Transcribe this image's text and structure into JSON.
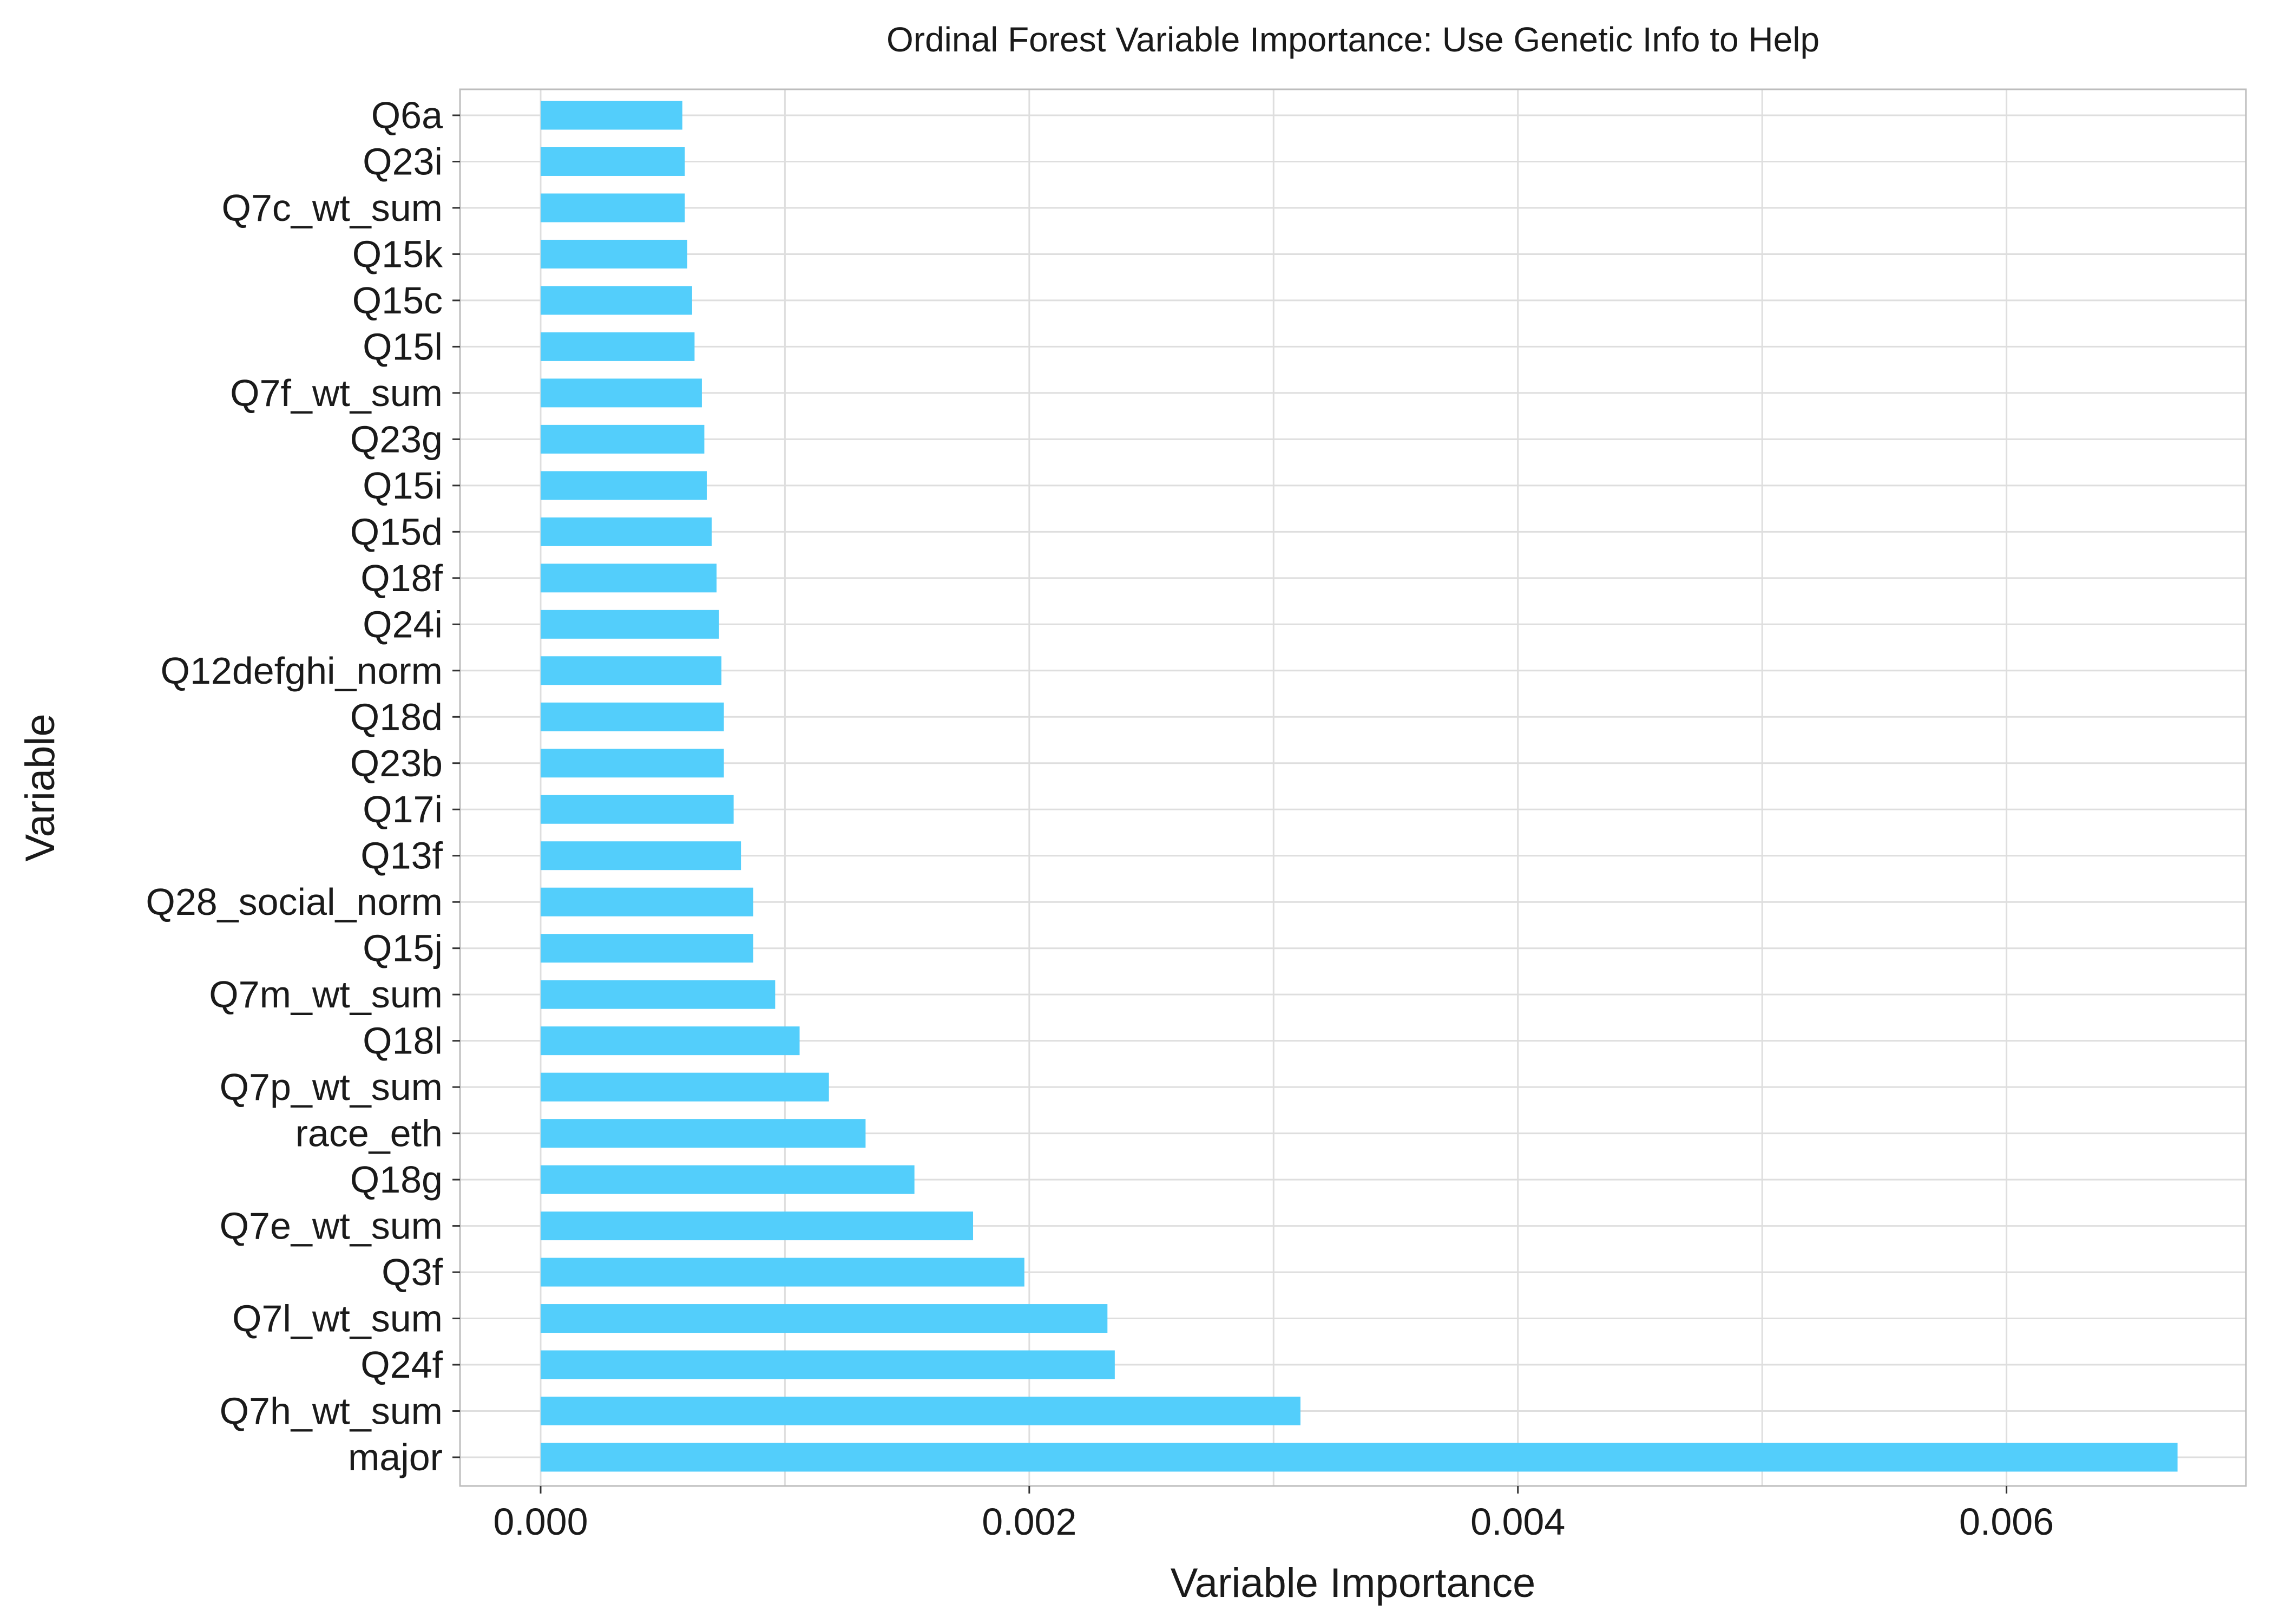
{
  "chart_data": {
    "type": "bar",
    "orientation": "horizontal",
    "title": "Ordinal Forest Variable Importance: Use Genetic Info to Help",
    "xlabel": "Variable Importance",
    "ylabel": "Variable",
    "xlim": [
      -0.00033,
      0.00698
    ],
    "x_ticks": [
      0.0,
      0.002,
      0.004,
      0.006
    ],
    "x_tick_labels": [
      "0.000",
      "0.002",
      "0.004",
      "0.006"
    ],
    "grid": true,
    "bar_color": "#53cefb",
    "categories": [
      "Q6a",
      "Q23i",
      "Q7c_wt_sum",
      "Q15k",
      "Q15c",
      "Q15l",
      "Q7f_wt_sum",
      "Q23g",
      "Q15i",
      "Q15d",
      "Q18f",
      "Q24i",
      "Q12defghi_norm",
      "Q18d",
      "Q23b",
      "Q17i",
      "Q13f",
      "Q28_social_norm",
      "Q15j",
      "Q7m_wt_sum",
      "Q18l",
      "Q7p_wt_sum",
      "race_eth",
      "Q18g",
      "Q7e_wt_sum",
      "Q3f",
      "Q7l_wt_sum",
      "Q24f",
      "Q7h_wt_sum",
      "major"
    ],
    "values": [
      0.00058,
      0.00059,
      0.00059,
      0.0006,
      0.00062,
      0.00063,
      0.00066,
      0.00067,
      0.00068,
      0.0007,
      0.00072,
      0.00073,
      0.00074,
      0.00075,
      0.00075,
      0.00079,
      0.00082,
      0.00087,
      0.00087,
      0.00096,
      0.00106,
      0.00118,
      0.00133,
      0.00153,
      0.00177,
      0.00198,
      0.00232,
      0.00235,
      0.00311,
      0.0067
    ]
  }
}
